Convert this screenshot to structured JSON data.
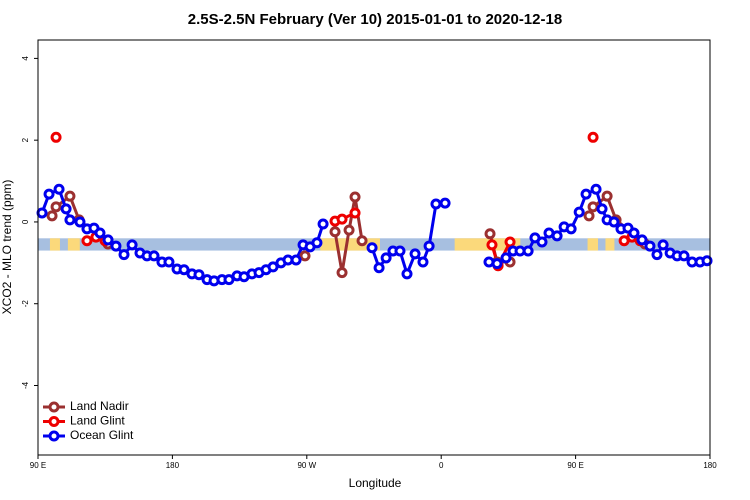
{
  "chart_data": {
    "type": "line",
    "title": "2.5S-2.5N February (Ver 10)   2015-01-01 to 2020-12-18",
    "x_label": "Longitude",
    "y_label": "XCO2 - MLO trend (ppm)",
    "xlim": [
      90,
      540
    ],
    "ylim": [
      -5.7,
      4.45
    ],
    "xticks": [
      {
        "value": 90,
        "label": "90 E"
      },
      180,
      {
        "value": 270,
        "label": "90 W"
      },
      {
        "value": 360,
        "label": "0"
      },
      {
        "value": 450,
        "label": "90 E"
      },
      {
        "value": 540,
        "label": "180"
      }
    ],
    "yticks": [
      -4,
      -2,
      0,
      2,
      4
    ],
    "legend": "bottom-left",
    "band": {
      "range": [
        -0.7,
        -0.4
      ],
      "color": "#a7bfe0",
      "land_color": "#fbd97b",
      "land": [
        [
          98,
          104.7
        ],
        [
          110,
          118
        ],
        [
          279,
          319
        ],
        [
          369,
          413
        ],
        [
          458,
          465
        ],
        [
          470,
          476
        ]
      ]
    },
    "series": [
      {
        "name": "Land Nadir",
        "color": "#9b3030",
        "x": [
          99.4,
          102.1,
          111.4,
          117.5,
          136.9,
          null,
          268.8,
          null,
          288.9,
          293.6,
          298.3,
          302.3,
          307.0,
          null,
          392.7,
          397.4,
          406.1,
          null,
          459.0,
          461.7,
          471.1,
          477.1,
          496.5
        ],
        "values": [
          0.15,
          0.37,
          0.63,
          0.05,
          -0.54,
          null,
          -0.83,
          null,
          -0.24,
          -1.24,
          -0.2,
          0.61,
          -0.46,
          null,
          -0.29,
          -0.98,
          -0.98,
          null,
          0.15,
          0.37,
          0.63,
          0.05,
          -0.54
        ]
      },
      {
        "name": "Land Glint",
        "color": "#ee0000",
        "x": [
          102.1,
          null,
          122.8,
          128.8,
          134.9,
          null,
          288.9,
          293.6,
          302.3,
          null,
          394.0,
          398.1,
          406.1,
          null,
          461.7,
          null,
          482.5,
          487.8,
          493.2
        ],
        "values": [
          2.07,
          null,
          -0.46,
          -0.37,
          -0.46,
          null,
          0.02,
          0.07,
          0.22,
          null,
          -0.56,
          -1.07,
          -0.49,
          null,
          2.07,
          null,
          -0.46,
          -0.37,
          -0.46
        ]
      },
      {
        "name": "Ocean Glint",
        "color": "#0000ee",
        "x": [
          92.7,
          97.4,
          104.1,
          108.8,
          111.4,
          118.1,
          122.8,
          127.5,
          131.5,
          136.9,
          142.2,
          147.6,
          153.0,
          158.3,
          163.0,
          167.7,
          173.0,
          177.7,
          183.1,
          187.8,
          193.1,
          197.8,
          203.2,
          207.9,
          213.2,
          217.9,
          223.3,
          228.0,
          233.3,
          238.0,
          242.7,
          247.4,
          252.7,
          257.4,
          262.8,
          267.5,
          272.2,
          276.8,
          280.9,
          null,
          313.7,
          318.4,
          323.1,
          327.7,
          332.4,
          337.1,
          342.5,
          347.8,
          351.9,
          356.5,
          362.6,
          null,
          392.0,
          397.4,
          403.4,
          408.1,
          412.8,
          418.2,
          422.8,
          427.5,
          432.2,
          437.6,
          442.3,
          447.0,
          452.4,
          457.0,
          463.7,
          467.7,
          471.1,
          475.7,
          480.4,
          485.1,
          489.1,
          494.5,
          499.8,
          504.5,
          508.6,
          513.3,
          518.0,
          522.6,
          528.0,
          533.3,
          538.0
        ],
        "values": [
          0.22,
          0.68,
          0.8,
          0.32,
          0.05,
          0.0,
          -0.17,
          -0.15,
          -0.27,
          -0.44,
          -0.59,
          -0.8,
          -0.56,
          -0.76,
          -0.83,
          -0.83,
          -0.98,
          -0.98,
          -1.15,
          -1.17,
          -1.27,
          -1.29,
          -1.41,
          -1.44,
          -1.41,
          -1.41,
          -1.32,
          -1.34,
          -1.27,
          -1.24,
          -1.17,
          -1.1,
          -1.0,
          -0.93,
          -0.93,
          -0.56,
          -0.61,
          -0.51,
          -0.05,
          null,
          -0.63,
          -1.12,
          -0.88,
          -0.71,
          -0.71,
          -1.27,
          -0.78,
          -0.98,
          -0.59,
          0.44,
          0.46,
          null,
          -0.98,
          -1.02,
          -0.88,
          -0.71,
          -0.71,
          -0.71,
          -0.39,
          -0.49,
          -0.27,
          -0.34,
          -0.12,
          -0.17,
          0.24,
          0.68,
          0.8,
          0.32,
          0.05,
          0.0,
          -0.17,
          -0.15,
          -0.27,
          -0.44,
          -0.59,
          -0.8,
          -0.56,
          -0.76,
          -0.83,
          -0.83,
          -0.98,
          -0.98,
          -0.95
        ]
      }
    ]
  }
}
